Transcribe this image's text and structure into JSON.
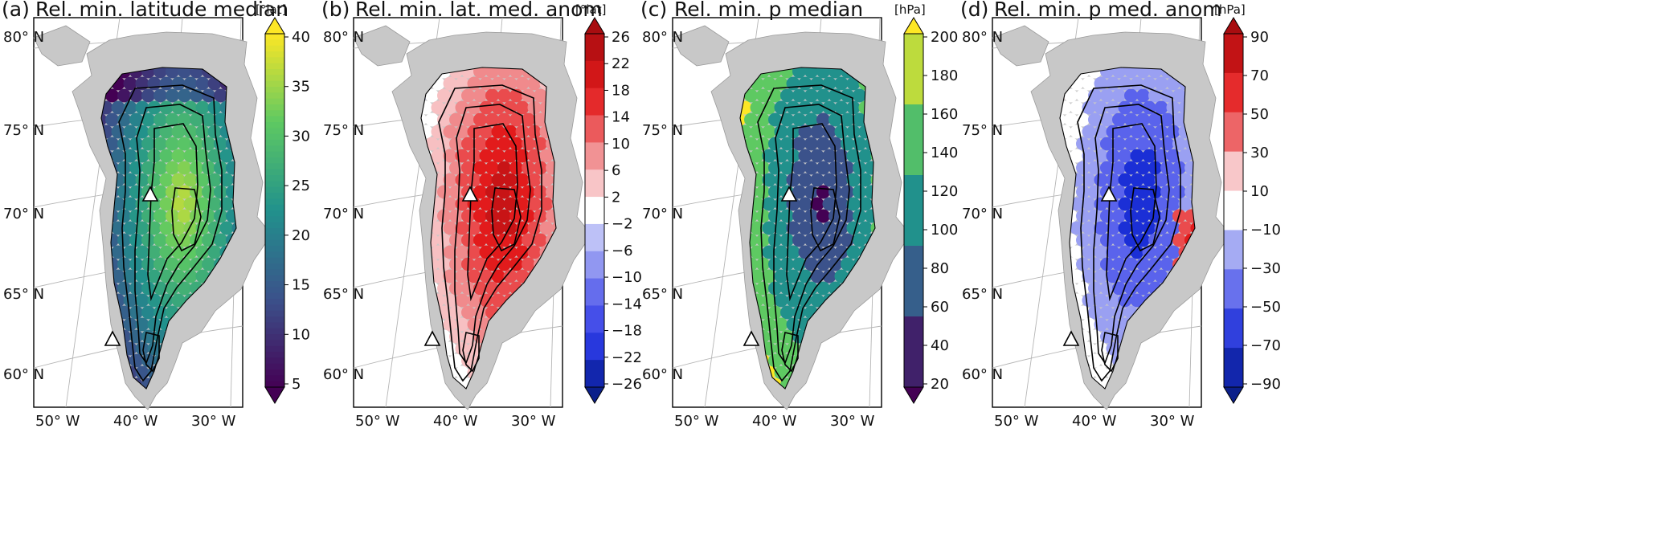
{
  "panels": [
    {
      "id": "a",
      "label": "(a)",
      "title": "Rel. min. latitude median",
      "unit": "[°lat]",
      "colorbar_ticks": [
        "40",
        "35",
        "30",
        "25",
        "20",
        "15",
        "10",
        "5"
      ],
      "colormap": "viridis",
      "colorbar_style": "continuous",
      "colors": [
        "#440154",
        "#3b528b",
        "#21918c",
        "#5ec962",
        "#fde725"
      ]
    },
    {
      "id": "b",
      "label": "(b)",
      "title": "Rel. min. lat. med. anom",
      "unit": "[°lat]",
      "colorbar_ticks": [
        "26",
        "22",
        "18",
        "14",
        "10",
        "6",
        "2",
        "−2",
        "−6",
        "−10",
        "−14",
        "−18",
        "−22",
        "−26"
      ],
      "colormap": "diverging blue-white-red",
      "colorbar_style": "discrete",
      "colors": [
        "#0b1f8a",
        "#1b2fd6",
        "#3c46e8",
        "#5a63ec",
        "#8a90f0",
        "#b8bcf6",
        "#ffffff",
        "#f7c0c2",
        "#f08a8c",
        "#ea4b4d",
        "#e21b1c",
        "#c81416",
        "#a80d10"
      ]
    },
    {
      "id": "c",
      "label": "(c)",
      "title": "Rel. min. p median",
      "unit": "[hPa]",
      "colorbar_ticks": [
        "200",
        "180",
        "160",
        "140",
        "120",
        "100",
        "80",
        "60",
        "40",
        "20"
      ],
      "colormap": "viridis",
      "colorbar_style": "discrete",
      "colors": [
        "#440154",
        "#3b528b",
        "#21918c",
        "#5ec962",
        "#fde725"
      ]
    },
    {
      "id": "d",
      "label": "(d)",
      "title": "Rel. min. p med. anom",
      "unit": "[hPa]",
      "colorbar_ticks": [
        "90",
        "70",
        "50",
        "30",
        "10",
        "−10",
        "−30",
        "−50",
        "−70",
        "−90"
      ],
      "colormap": "diverging blue-white-red",
      "colorbar_style": "discrete",
      "colors": [
        "#0b1f8a",
        "#1b2fd6",
        "#5a63ec",
        "#9aa0f2",
        "#ffffff",
        "#f7c0c2",
        "#ea4b4d",
        "#e21b1c",
        "#a80d10"
      ]
    }
  ],
  "map": {
    "lat_labels": [
      "80° N",
      "75° N",
      "70° N",
      "65° N",
      "60° N"
    ],
    "lon_labels": [
      "50° W",
      "40° W",
      "30° W"
    ],
    "land_color": "#c8c8c8",
    "marker_color": "#ffffff",
    "markers": "white triangles: summit (~72°N, 38°W) and south dome (~63°N, 44°W)"
  }
}
